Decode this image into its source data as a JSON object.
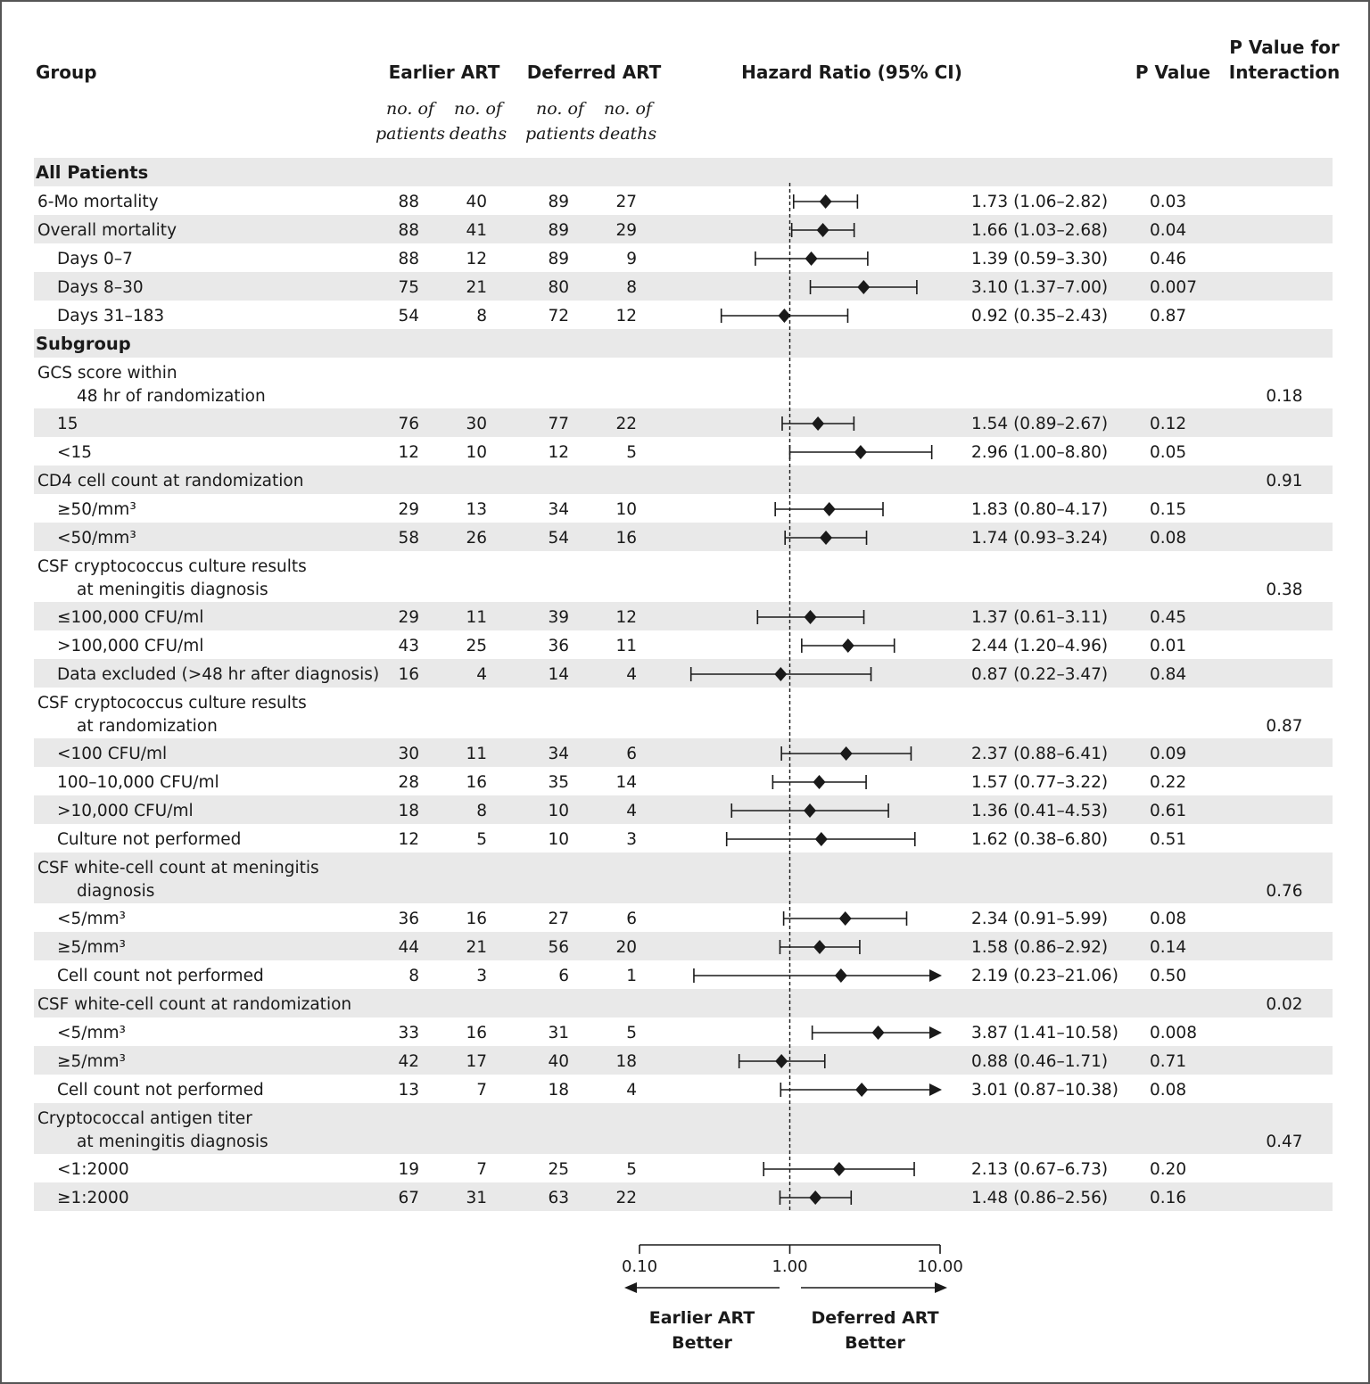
{
  "headers": {
    "group": "Group",
    "earlier": "Earlier ART",
    "deferred": "Deferred ART",
    "hr": "Hazard Ratio (95% CI)",
    "pvalue": "P Value",
    "pint_line1": "P Value for",
    "pint_line2": "Interaction",
    "sub_patients_1": "no. of",
    "sub_patients_2": "patients",
    "sub_deaths_1": "no. of",
    "sub_deaths_2": "deaths"
  },
  "axis": {
    "scale": "log",
    "reference": 1.0,
    "ticks": [
      0.1,
      1.0,
      10.0
    ],
    "tick_labels": [
      "0.10",
      "1.00",
      "10.00"
    ],
    "left_label_1": "Earlier ART",
    "left_label_2": "Better",
    "right_label_1": "Deferred ART",
    "right_label_2": "Better"
  },
  "chart_data": {
    "type": "forest",
    "xscale": "log",
    "xlim": [
      0.1,
      10.0
    ],
    "reference_line": 1.0,
    "rows": [
      {
        "kind": "section",
        "label": "All Patients",
        "shaded": true
      },
      {
        "kind": "data",
        "label": "6-Mo mortality",
        "indent": 0,
        "ep": "88",
        "ed": "40",
        "dp": "89",
        "dd": "27",
        "hr": 1.73,
        "lo": 1.06,
        "hi": 2.82,
        "text": "1.73 (1.06–2.82)",
        "p": "0.03",
        "pint": "",
        "shaded": false
      },
      {
        "kind": "data",
        "label": "Overall mortality",
        "indent": 0,
        "ep": "88",
        "ed": "41",
        "dp": "89",
        "dd": "29",
        "hr": 1.66,
        "lo": 1.03,
        "hi": 2.68,
        "text": "1.66 (1.03–2.68)",
        "p": "0.04",
        "pint": "",
        "shaded": true
      },
      {
        "kind": "data",
        "label": "Days 0–7",
        "indent": 1,
        "ep": "88",
        "ed": "12",
        "dp": "89",
        "dd": "9",
        "hr": 1.39,
        "lo": 0.59,
        "hi": 3.3,
        "text": "1.39 (0.59–3.30)",
        "p": "0.46",
        "pint": "",
        "shaded": false
      },
      {
        "kind": "data",
        "label": "Days 8–30",
        "indent": 1,
        "ep": "75",
        "ed": "21",
        "dp": "80",
        "dd": "8",
        "hr": 3.1,
        "lo": 1.37,
        "hi": 7.0,
        "text": "3.10 (1.37–7.00)",
        "p": "0.007",
        "pint": "",
        "shaded": true
      },
      {
        "kind": "data",
        "label": "Days 31–183",
        "indent": 1,
        "ep": "54",
        "ed": "8",
        "dp": "72",
        "dd": "12",
        "hr": 0.92,
        "lo": 0.35,
        "hi": 2.43,
        "text": "0.92 (0.35–2.43)",
        "p": "0.87",
        "pint": "",
        "shaded": false
      },
      {
        "kind": "section",
        "label": "Subgroup",
        "shaded": true
      },
      {
        "kind": "group",
        "label": "GCS score within",
        "label2": "48 hr of randomization",
        "pint": "0.18",
        "shaded": false,
        "tall": true
      },
      {
        "kind": "data",
        "label": "15",
        "indent": 1,
        "ep": "76",
        "ed": "30",
        "dp": "77",
        "dd": "22",
        "hr": 1.54,
        "lo": 0.89,
        "hi": 2.67,
        "text": "1.54 (0.89–2.67)",
        "p": "0.12",
        "pint": "",
        "shaded": true
      },
      {
        "kind": "data",
        "label": "<15",
        "indent": 1,
        "ep": "12",
        "ed": "10",
        "dp": "12",
        "dd": "5",
        "hr": 2.96,
        "lo": 1.0,
        "hi": 8.8,
        "text": "2.96 (1.00–8.80)",
        "p": "0.05",
        "pint": "",
        "shaded": false
      },
      {
        "kind": "group",
        "label": "CD4 cell count at randomization",
        "label2": "",
        "pint": "0.91",
        "shaded": true,
        "tall": false
      },
      {
        "kind": "data",
        "label": "≥50/mm³",
        "indent": 1,
        "ep": "29",
        "ed": "13",
        "dp": "34",
        "dd": "10",
        "hr": 1.83,
        "lo": 0.8,
        "hi": 4.17,
        "text": "1.83 (0.80–4.17)",
        "p": "0.15",
        "pint": "",
        "shaded": false
      },
      {
        "kind": "data",
        "label": "<50/mm³",
        "indent": 1,
        "ep": "58",
        "ed": "26",
        "dp": "54",
        "dd": "16",
        "hr": 1.74,
        "lo": 0.93,
        "hi": 3.24,
        "text": "1.74 (0.93–3.24)",
        "p": "0.08",
        "pint": "",
        "shaded": true
      },
      {
        "kind": "group",
        "label": "CSF cryptococcus culture results",
        "label2": "at meningitis diagnosis",
        "pint": "0.38",
        "shaded": false,
        "tall": true
      },
      {
        "kind": "data",
        "label": "≤100,000 CFU/ml",
        "indent": 1,
        "ep": "29",
        "ed": "11",
        "dp": "39",
        "dd": "12",
        "hr": 1.37,
        "lo": 0.61,
        "hi": 3.11,
        "text": "1.37 (0.61–3.11)",
        "p": "0.45",
        "pint": "",
        "shaded": true
      },
      {
        "kind": "data",
        "label": ">100,000 CFU/ml",
        "indent": 1,
        "ep": "43",
        "ed": "25",
        "dp": "36",
        "dd": "11",
        "hr": 2.44,
        "lo": 1.2,
        "hi": 4.96,
        "text": "2.44 (1.20–4.96)",
        "p": "0.01",
        "pint": "",
        "shaded": false
      },
      {
        "kind": "data",
        "label": "Data excluded (>48 hr after diagnosis)",
        "indent": 1,
        "ep": "16",
        "ed": "4",
        "dp": "14",
        "dd": "4",
        "hr": 0.87,
        "lo": 0.22,
        "hi": 3.47,
        "text": "0.87 (0.22–3.47)",
        "p": "0.84",
        "pint": "",
        "shaded": true
      },
      {
        "kind": "group",
        "label": "CSF cryptococcus culture results",
        "label2": "at randomization",
        "pint": "0.87",
        "shaded": false,
        "tall": true
      },
      {
        "kind": "data",
        "label": "<100 CFU/ml",
        "indent": 1,
        "ep": "30",
        "ed": "11",
        "dp": "34",
        "dd": "6",
        "hr": 2.37,
        "lo": 0.88,
        "hi": 6.41,
        "text": "2.37 (0.88–6.41)",
        "p": "0.09",
        "pint": "",
        "shaded": true
      },
      {
        "kind": "data",
        "label": "100–10,000 CFU/ml",
        "indent": 1,
        "ep": "28",
        "ed": "16",
        "dp": "35",
        "dd": "14",
        "hr": 1.57,
        "lo": 0.77,
        "hi": 3.22,
        "text": "1.57 (0.77–3.22)",
        "p": "0.22",
        "pint": "",
        "shaded": false
      },
      {
        "kind": "data",
        "label": ">10,000 CFU/ml",
        "indent": 1,
        "ep": "18",
        "ed": "8",
        "dp": "10",
        "dd": "4",
        "hr": 1.36,
        "lo": 0.41,
        "hi": 4.53,
        "text": "1.36 (0.41–4.53)",
        "p": "0.61",
        "pint": "",
        "shaded": true
      },
      {
        "kind": "data",
        "label": "Culture not performed",
        "indent": 1,
        "ep": "12",
        "ed": "5",
        "dp": "10",
        "dd": "3",
        "hr": 1.62,
        "lo": 0.38,
        "hi": 6.8,
        "text": "1.62 (0.38–6.80)",
        "p": "0.51",
        "pint": "",
        "shaded": false
      },
      {
        "kind": "group",
        "label": "CSF white-cell count at meningitis",
        "label2": "diagnosis",
        "pint": "0.76",
        "shaded": true,
        "tall": true
      },
      {
        "kind": "data",
        "label": "<5/mm³",
        "indent": 1,
        "ep": "36",
        "ed": "16",
        "dp": "27",
        "dd": "6",
        "hr": 2.34,
        "lo": 0.91,
        "hi": 5.99,
        "text": "2.34 (0.91–5.99)",
        "p": "0.08",
        "pint": "",
        "shaded": false
      },
      {
        "kind": "data",
        "label": "≥5/mm³",
        "indent": 1,
        "ep": "44",
        "ed": "21",
        "dp": "56",
        "dd": "20",
        "hr": 1.58,
        "lo": 0.86,
        "hi": 2.92,
        "text": "1.58 (0.86–2.92)",
        "p": "0.14",
        "pint": "",
        "shaded": true
      },
      {
        "kind": "data",
        "label": "Cell count not performed",
        "indent": 1,
        "ep": "8",
        "ed": "3",
        "dp": "6",
        "dd": "1",
        "hr": 2.19,
        "lo": 0.23,
        "hi": 21.06,
        "text": "2.19 (0.23–21.06)",
        "p": "0.50",
        "pint": "",
        "shaded": false
      },
      {
        "kind": "group",
        "label": "CSF white-cell count at randomization",
        "label2": "",
        "pint": "0.02",
        "shaded": true,
        "tall": false
      },
      {
        "kind": "data",
        "label": "<5/mm³",
        "indent": 1,
        "ep": "33",
        "ed": "16",
        "dp": "31",
        "dd": "5",
        "hr": 3.87,
        "lo": 1.41,
        "hi": 10.58,
        "text": "3.87 (1.41–10.58)",
        "p": "0.008",
        "pint": "",
        "shaded": false
      },
      {
        "kind": "data",
        "label": "≥5/mm³",
        "indent": 1,
        "ep": "42",
        "ed": "17",
        "dp": "40",
        "dd": "18",
        "hr": 0.88,
        "lo": 0.46,
        "hi": 1.71,
        "text": "0.88 (0.46–1.71)",
        "p": "0.71",
        "pint": "",
        "shaded": true
      },
      {
        "kind": "data",
        "label": "Cell count not performed",
        "indent": 1,
        "ep": "13",
        "ed": "7",
        "dp": "18",
        "dd": "4",
        "hr": 3.01,
        "lo": 0.87,
        "hi": 10.38,
        "text": "3.01 (0.87–10.38)",
        "p": "0.08",
        "pint": "",
        "shaded": false
      },
      {
        "kind": "group",
        "label": "Cryptococcal antigen titer",
        "label2": "at meningitis diagnosis",
        "pint": "0.47",
        "shaded": true,
        "tall": true
      },
      {
        "kind": "data",
        "label": "<1:2000",
        "indent": 1,
        "ep": "19",
        "ed": "7",
        "dp": "25",
        "dd": "5",
        "hr": 2.13,
        "lo": 0.67,
        "hi": 6.73,
        "text": "2.13 (0.67–6.73)",
        "p": "0.20",
        "pint": "",
        "shaded": false
      },
      {
        "kind": "data",
        "label": "≥1:2000",
        "indent": 1,
        "ep": "67",
        "ed": "31",
        "dp": "63",
        "dd": "22",
        "hr": 1.48,
        "lo": 0.86,
        "hi": 2.56,
        "text": "1.48 (0.86–2.56)",
        "p": "0.16",
        "pint": "",
        "shaded": true
      }
    ]
  },
  "colors": {
    "shade": "#e9e9e9",
    "ink": "#1a1a1a",
    "border": "#555555"
  }
}
